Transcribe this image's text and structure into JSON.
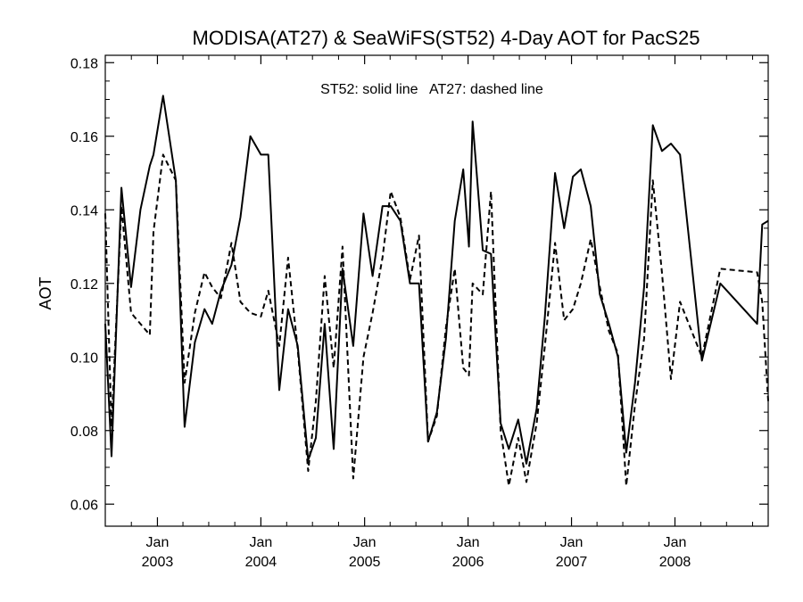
{
  "chart_data": {
    "type": "line",
    "title": "MODISA(AT27) & SeaWiFS(ST52) 4-Day AOT for PacS25",
    "annotation": "ST52: solid line   AT27: dashed line",
    "ylabel": "AOT",
    "xlabel": "",
    "ylim": [
      0.054,
      0.182
    ],
    "xlim": [
      "2002-07-01",
      "2008-11-25"
    ],
    "y_ticks": [
      0.06,
      0.08,
      0.1,
      0.12,
      0.14,
      0.16,
      0.18
    ],
    "y_tick_labels": [
      "0.06",
      "0.08",
      "0.10",
      "0.12",
      "0.14",
      "0.16",
      "0.18"
    ],
    "x_ticks": [
      {
        "month": "Jan",
        "year": "2003",
        "date": "2003-01-01"
      },
      {
        "month": "Jan",
        "year": "2004",
        "date": "2004-01-01"
      },
      {
        "month": "Jan",
        "year": "2005",
        "date": "2005-01-01"
      },
      {
        "month": "Jan",
        "year": "2006",
        "date": "2006-01-01"
      },
      {
        "month": "Jan",
        "year": "2007",
        "date": "2007-01-01"
      },
      {
        "month": "Jan",
        "year": "2008",
        "date": "2008-01-01"
      }
    ],
    "series": [
      {
        "style": "solid",
        "color": "#000000",
        "points": [
          [
            "2002-07-01",
            0.109
          ],
          [
            "2002-07-23",
            0.073
          ],
          [
            "2002-08-27",
            0.146
          ],
          [
            "2002-09-30",
            0.119
          ],
          [
            "2002-11-02",
            0.14
          ],
          [
            "2002-12-05",
            0.152
          ],
          [
            "2002-12-18",
            0.155
          ],
          [
            "2003-01-21",
            0.171
          ],
          [
            "2003-03-07",
            0.148
          ],
          [
            "2003-04-07",
            0.081
          ],
          [
            "2003-05-13",
            0.104
          ],
          [
            "2003-06-16",
            0.113
          ],
          [
            "2003-07-13",
            0.109
          ],
          [
            "2003-08-13",
            0.118
          ],
          [
            "2003-09-19",
            0.125
          ],
          [
            "2003-10-21",
            0.138
          ],
          [
            "2003-11-25",
            0.16
          ],
          [
            "2004-01-01",
            0.155
          ],
          [
            "2004-01-27",
            0.155
          ],
          [
            "2004-03-06",
            0.091
          ],
          [
            "2004-04-06",
            0.113
          ],
          [
            "2004-05-10",
            0.103
          ],
          [
            "2004-06-16",
            0.072
          ],
          [
            "2004-07-13",
            0.078
          ],
          [
            "2004-08-13",
            0.109
          ],
          [
            "2004-09-14",
            0.075
          ],
          [
            "2004-10-15",
            0.124
          ],
          [
            "2004-11-22",
            0.103
          ],
          [
            "2004-12-28",
            0.139
          ],
          [
            "2005-01-29",
            0.122
          ],
          [
            "2005-03-05",
            0.141
          ],
          [
            "2005-04-03",
            0.141
          ],
          [
            "2005-05-07",
            0.137
          ],
          [
            "2005-06-10",
            0.12
          ],
          [
            "2005-07-12",
            0.12
          ],
          [
            "2005-08-13",
            0.077
          ],
          [
            "2005-09-13",
            0.085
          ],
          [
            "2005-10-15",
            0.105
          ],
          [
            "2005-11-15",
            0.137
          ],
          [
            "2005-12-15",
            0.151
          ],
          [
            "2006-01-04",
            0.13
          ],
          [
            "2006-01-17",
            0.164
          ],
          [
            "2006-02-22",
            0.129
          ],
          [
            "2006-03-23",
            0.128
          ],
          [
            "2006-04-26",
            0.082
          ],
          [
            "2006-05-25",
            0.075
          ],
          [
            "2006-06-27",
            0.083
          ],
          [
            "2006-07-26",
            0.071
          ],
          [
            "2006-08-31",
            0.086
          ],
          [
            "2006-09-29",
            0.111
          ],
          [
            "2006-11-04",
            0.15
          ],
          [
            "2006-12-06",
            0.135
          ],
          [
            "2007-01-06",
            0.149
          ],
          [
            "2007-02-03",
            0.151
          ],
          [
            "2007-03-10",
            0.141
          ],
          [
            "2007-04-11",
            0.117
          ],
          [
            "2007-05-13",
            0.109
          ],
          [
            "2007-06-14",
            0.1
          ],
          [
            "2007-07-13",
            0.074
          ],
          [
            "2007-08-13",
            0.093
          ],
          [
            "2007-09-14",
            0.119
          ],
          [
            "2007-10-15",
            0.163
          ],
          [
            "2007-11-16",
            0.156
          ],
          [
            "2007-12-18",
            0.158
          ],
          [
            "2008-01-19",
            0.155
          ],
          [
            "2008-04-05",
            0.099
          ],
          [
            "2008-06-09",
            0.12
          ],
          [
            "2008-10-17",
            0.109
          ],
          [
            "2008-11-04",
            0.136
          ],
          [
            "2008-11-25",
            0.137
          ]
        ]
      },
      {
        "style": "dashed",
        "color": "#000000",
        "points": [
          [
            "2002-07-01",
            0.139
          ],
          [
            "2002-07-23",
            0.081
          ],
          [
            "2002-08-27",
            0.141
          ],
          [
            "2002-09-30",
            0.112
          ],
          [
            "2002-11-02",
            0.109
          ],
          [
            "2002-12-05",
            0.106
          ],
          [
            "2002-12-18",
            0.134
          ],
          [
            "2003-01-21",
            0.155
          ],
          [
            "2003-03-07",
            0.148
          ],
          [
            "2003-04-07",
            0.093
          ],
          [
            "2003-05-13",
            0.112
          ],
          [
            "2003-06-16",
            0.123
          ],
          [
            "2003-07-13",
            0.119
          ],
          [
            "2003-08-13",
            0.116
          ],
          [
            "2003-09-19",
            0.131
          ],
          [
            "2003-10-21",
            0.115
          ],
          [
            "2003-11-25",
            0.112
          ],
          [
            "2004-01-01",
            0.111
          ],
          [
            "2004-01-27",
            0.118
          ],
          [
            "2004-03-06",
            0.103
          ],
          [
            "2004-04-06",
            0.127
          ],
          [
            "2004-05-10",
            0.102
          ],
          [
            "2004-06-16",
            0.069
          ],
          [
            "2004-07-13",
            0.088
          ],
          [
            "2004-08-13",
            0.122
          ],
          [
            "2004-09-14",
            0.097
          ],
          [
            "2004-10-15",
            0.13
          ],
          [
            "2004-11-22",
            0.067
          ],
          [
            "2004-12-28",
            0.1
          ],
          [
            "2005-01-29",
            0.112
          ],
          [
            "2005-03-05",
            0.127
          ],
          [
            "2005-04-03",
            0.145
          ],
          [
            "2005-05-07",
            0.138
          ],
          [
            "2005-06-10",
            0.121
          ],
          [
            "2005-07-12",
            0.133
          ],
          [
            "2005-08-13",
            0.077
          ],
          [
            "2005-09-13",
            0.084
          ],
          [
            "2005-10-15",
            0.108
          ],
          [
            "2005-11-15",
            0.124
          ],
          [
            "2005-12-15",
            0.097
          ],
          [
            "2006-01-04",
            0.095
          ],
          [
            "2006-01-17",
            0.12
          ],
          [
            "2006-02-22",
            0.117
          ],
          [
            "2006-03-23",
            0.145
          ],
          [
            "2006-04-26",
            0.08
          ],
          [
            "2006-05-25",
            0.065
          ],
          [
            "2006-06-27",
            0.078
          ],
          [
            "2006-07-26",
            0.066
          ],
          [
            "2006-08-31",
            0.082
          ],
          [
            "2006-09-29",
            0.103
          ],
          [
            "2006-11-04",
            0.131
          ],
          [
            "2006-12-06",
            0.11
          ],
          [
            "2007-01-06",
            0.113
          ],
          [
            "2007-02-03",
            0.12
          ],
          [
            "2007-03-10",
            0.132
          ],
          [
            "2007-04-11",
            0.119
          ],
          [
            "2007-05-13",
            0.107
          ],
          [
            "2007-06-14",
            0.101
          ],
          [
            "2007-07-13",
            0.065
          ],
          [
            "2007-08-13",
            0.087
          ],
          [
            "2007-09-14",
            0.105
          ],
          [
            "2007-10-15",
            0.148
          ],
          [
            "2007-11-16",
            0.123
          ],
          [
            "2007-12-18",
            0.094
          ],
          [
            "2008-01-19",
            0.115
          ],
          [
            "2008-04-05",
            0.1
          ],
          [
            "2008-06-09",
            0.124
          ],
          [
            "2008-10-17",
            0.123
          ],
          [
            "2008-11-04",
            0.115
          ],
          [
            "2008-11-25",
            0.088
          ]
        ]
      }
    ]
  }
}
